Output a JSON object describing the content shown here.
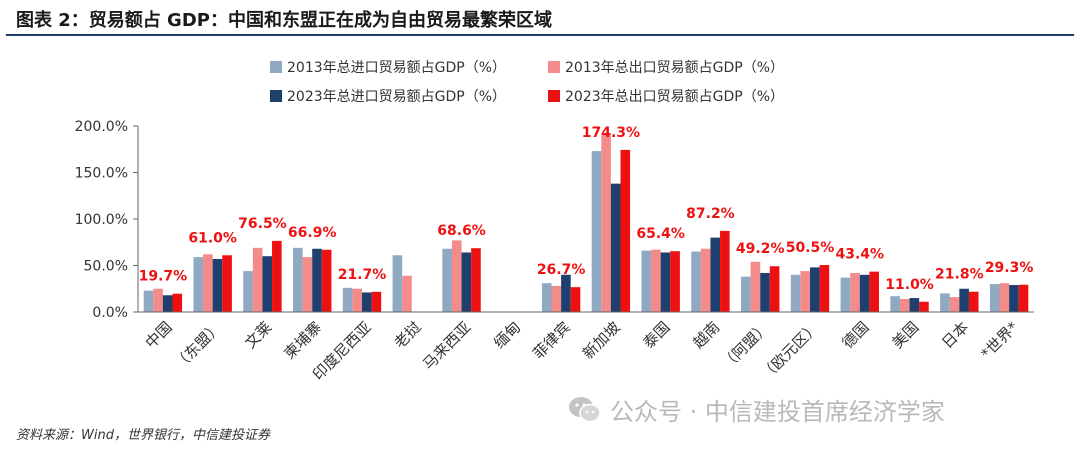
{
  "figure_title": "图表 2：贸易额占 GDP：中国和东盟正在成为自由贸易最繁荣区域",
  "source_note": "资料来源：Wind，世界银行，中信建投证券",
  "watermark_text": "公众号 · 中信建投首席经济学家",
  "colors": {
    "imp2013": "#8ea9c1",
    "exp2013": "#f48b8b",
    "imp2023": "#1f3f6e",
    "exp2023": "#ee1111",
    "label": "#ee1111",
    "axis": "#666666"
  },
  "chart_data": {
    "type": "bar",
    "title": "",
    "xlabel": "",
    "ylabel": "",
    "ylim": [
      0,
      200
    ],
    "yticks": [
      0,
      50,
      100,
      150,
      200
    ],
    "ytick_labels": [
      "0.0%",
      "50.0%",
      "100.0%",
      "150.0%",
      "200.0%"
    ],
    "grid": false,
    "legend_position": "top-center",
    "categories": [
      "中国",
      "（东盟）",
      "文莱",
      "柬埔寨",
      "印度尼西亚",
      "老挝",
      "马来西亚",
      "缅甸",
      "菲律宾",
      "新加坡",
      "泰国",
      "越南",
      "（阿盟）",
      "（欧元区）",
      "德国",
      "美国",
      "日本",
      "*世界*"
    ],
    "series": [
      {
        "name": "2013年总进口贸易额占GDP（%）",
        "values": [
          23,
          59,
          44,
          69,
          26,
          61,
          68,
          null,
          31,
          173,
          66,
          65,
          38,
          40,
          37,
          17,
          20,
          30
        ]
      },
      {
        "name": "2013年总出口贸易额占GDP（%）",
        "values": [
          25,
          62,
          69,
          59,
          25,
          39,
          77,
          null,
          28,
          192,
          67,
          68,
          54,
          44,
          42,
          14,
          16,
          31
        ]
      },
      {
        "name": "2023年总进口贸易额占GDP（%）",
        "values": [
          18,
          57,
          60,
          68,
          21,
          null,
          64,
          null,
          40,
          138,
          64,
          80,
          42,
          48,
          40,
          15,
          25,
          29
        ]
      },
      {
        "name": "2023年总出口贸易额占GDP（%）",
        "values": [
          19.7,
          61.0,
          76.5,
          66.9,
          21.7,
          null,
          68.6,
          null,
          26.7,
          174.3,
          65.4,
          87.2,
          49.2,
          50.5,
          43.4,
          11.0,
          21.8,
          29.3
        ]
      }
    ],
    "data_labels": [
      "19.7%",
      "61.0%",
      "76.5%",
      "66.9%",
      "21.7%",
      "",
      "68.6%",
      "",
      "26.7%",
      "174.3%",
      "65.4%",
      "87.2%",
      "49.2%",
      "50.5%",
      "43.4%",
      "11.0%",
      "21.8%",
      "29.3%"
    ]
  }
}
